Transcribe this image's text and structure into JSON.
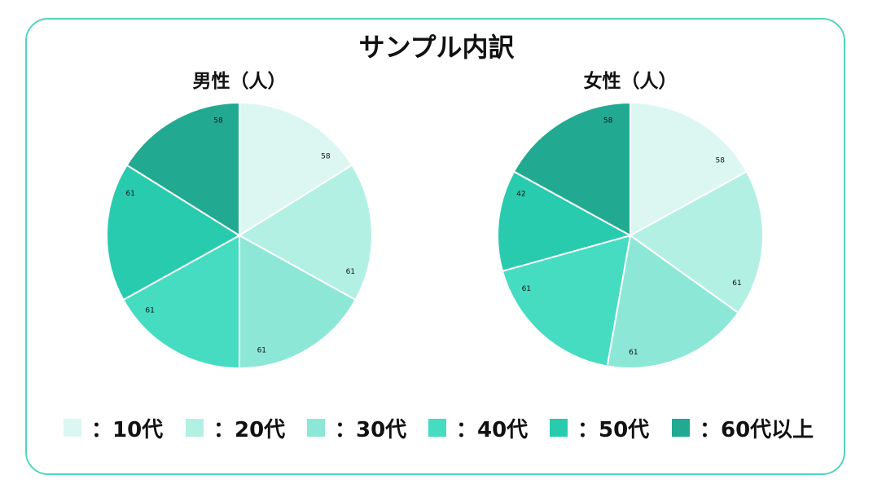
{
  "chart_data": {
    "title": "サンプル内訳",
    "legend": {
      "placement": "bottom",
      "items": [
        {
          "label": "：10代",
          "color": "#dcf7f1"
        },
        {
          "label": "：20代",
          "color": "#b3f0e4"
        },
        {
          "label": "：30代",
          "color": "#8de7d6"
        },
        {
          "label": "：40代",
          "color": "#45dcc1"
        },
        {
          "label": "：50代",
          "color": "#29cbae"
        },
        {
          "label": "：60代以上",
          "color": "#21aa91"
        }
      ]
    },
    "charts": [
      {
        "type": "pie",
        "title": "男性（人）",
        "categories": [
          "10代",
          "20代",
          "30代",
          "40代",
          "50代",
          "60代以上"
        ],
        "values": [
          58,
          61,
          61,
          61,
          61,
          58
        ],
        "colors": [
          "#dcf7f1",
          "#b3f0e4",
          "#8de7d6",
          "#45dcc1",
          "#29cbae",
          "#21aa91"
        ]
      },
      {
        "type": "pie",
        "title": "女性（人）",
        "categories": [
          "10代",
          "20代",
          "30代",
          "40代",
          "50代",
          "60代以上"
        ],
        "values": [
          58,
          61,
          61,
          61,
          42,
          58
        ],
        "colors": [
          "#dcf7f1",
          "#b3f0e4",
          "#8de7d6",
          "#45dcc1",
          "#29cbae",
          "#21aa91"
        ]
      }
    ]
  }
}
